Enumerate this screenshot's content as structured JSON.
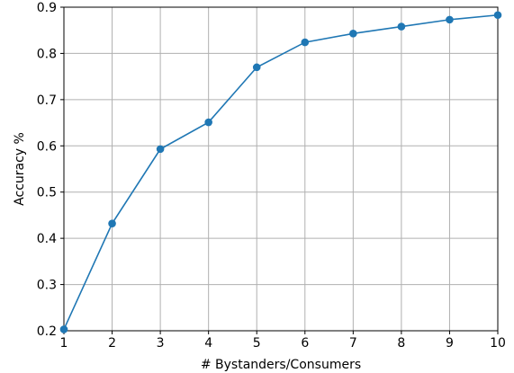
{
  "chart_data": {
    "type": "line",
    "title": "",
    "xlabel": "# Bystanders/Consumers",
    "ylabel": "Accuracy %",
    "x": [
      1,
      2,
      3,
      4,
      5,
      6,
      7,
      8,
      9,
      10
    ],
    "series": [
      {
        "values": [
          0.203,
          0.432,
          0.593,
          0.651,
          0.77,
          0.824,
          0.843,
          0.858,
          0.873,
          0.883
        ],
        "color": "#1f77b4"
      }
    ],
    "xlim": [
      1,
      10
    ],
    "ylim": [
      0.2,
      0.9
    ],
    "xticks": [
      "1",
      "2",
      "3",
      "4",
      "5",
      "6",
      "7",
      "8",
      "9",
      "10"
    ],
    "yticks": [
      "0.2",
      "0.3",
      "0.4",
      "0.5",
      "0.6",
      "0.7",
      "0.8",
      "0.9"
    ],
    "grid": true,
    "legend": "none"
  }
}
